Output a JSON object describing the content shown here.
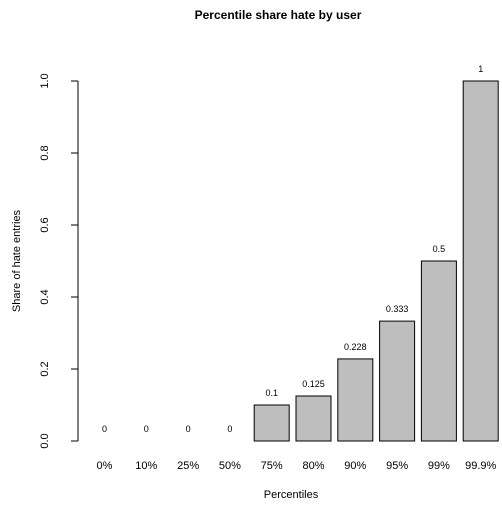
{
  "chart_data": {
    "type": "bar",
    "title": "Percentile share hate by user",
    "xlabel": "Percentiles",
    "ylabel": "Share of hate entries",
    "categories": [
      "0%",
      "10%",
      "25%",
      "50%",
      "75%",
      "80%",
      "90%",
      "95%",
      "99%",
      "99.9%"
    ],
    "values": [
      0,
      0,
      0,
      0,
      0.1,
      0.125,
      0.228,
      0.333,
      0.5,
      1
    ],
    "value_labels": [
      "0",
      "0",
      "0",
      "0",
      "0.1",
      "0.125",
      "0.228",
      "0.333",
      "0.5",
      "1"
    ],
    "ylim": [
      0,
      1
    ],
    "yticks": [
      "0.0",
      "0.2",
      "0.4",
      "0.6",
      "0.8",
      "1.0"
    ],
    "bar_color": "#bebebe",
    "grid": false,
    "legend": "none"
  }
}
